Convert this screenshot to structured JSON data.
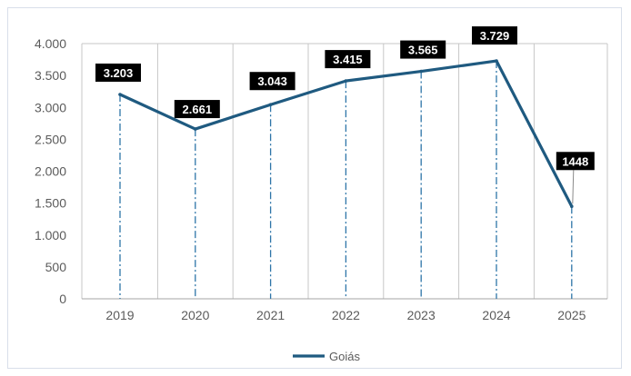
{
  "chart_data": {
    "type": "line",
    "categories": [
      "2019",
      "2020",
      "2021",
      "2022",
      "2023",
      "2024",
      "2025"
    ],
    "series": [
      {
        "name": "Goiás",
        "values": [
          3203,
          2661,
          3043,
          3415,
          3565,
          3729,
          1448
        ],
        "labels": [
          "3.203",
          "2.661",
          "3.043",
          "3.415",
          "3.565",
          "3.729",
          "1448"
        ],
        "color": "#1f5a80"
      }
    ],
    "yticks": [
      {
        "value": 0,
        "label": "0"
      },
      {
        "value": 500,
        "label": "500"
      },
      {
        "value": 1000,
        "label": "1.000"
      },
      {
        "value": 1500,
        "label": "1.500"
      },
      {
        "value": 2000,
        "label": "2.000"
      },
      {
        "value": 2500,
        "label": "2.500"
      },
      {
        "value": 3000,
        "label": "3.000"
      },
      {
        "value": 3500,
        "label": "3.500"
      },
      {
        "value": 4000,
        "label": "4.000"
      }
    ],
    "ylim": [
      0,
      4000
    ],
    "title": "",
    "xlabel": "",
    "ylabel": "",
    "grid": "vertical",
    "legend_position": "bottom",
    "label_background": "#000000",
    "gridline_color": "#c7c7c7",
    "dropline_color": "#2e75a8"
  }
}
